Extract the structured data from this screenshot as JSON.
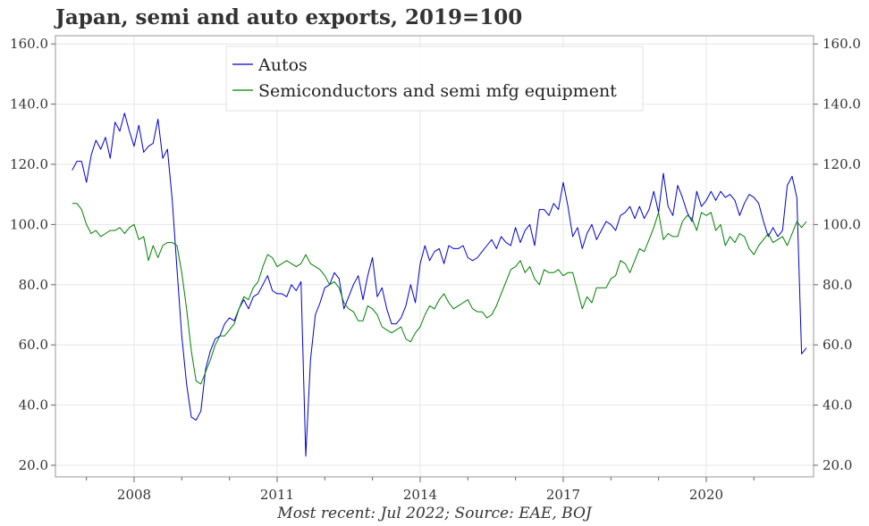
{
  "title": "Japan, semi and auto exports, 2019=100",
  "caption": "Most recent: Jul 2022; Source: EAE, BOJ",
  "chart_data": {
    "type": "line",
    "title": "Japan, semi and auto exports, 2019=100",
    "x_range": [
      2005.8,
      2022.0
    ],
    "ylim": [
      17.0,
      163.0
    ],
    "y_ticks": [
      20,
      40,
      60,
      80,
      100,
      120,
      140,
      160
    ],
    "y_tick_labels": [
      "20.0",
      "40.0",
      "60.0",
      "80.0",
      "100.0",
      "120.0",
      "140.0",
      "160.0"
    ],
    "x_ticks": [
      2008,
      2011,
      2014,
      2017,
      2020
    ],
    "x_tick_labels": [
      "2008",
      "2011",
      "2014",
      "2017",
      "2020"
    ],
    "grid": true,
    "legend_position": "top-center",
    "series": [
      {
        "name": "Autos",
        "color": "#0000cc",
        "points": [
          [
            2006.7,
            118
          ],
          [
            2006.8,
            121
          ],
          [
            2006.9,
            121
          ],
          [
            2007.0,
            114
          ],
          [
            2007.1,
            123
          ],
          [
            2007.2,
            128
          ],
          [
            2007.3,
            125
          ],
          [
            2007.4,
            129
          ],
          [
            2007.5,
            122
          ],
          [
            2007.6,
            134
          ],
          [
            2007.7,
            131
          ],
          [
            2007.8,
            137
          ],
          [
            2007.9,
            131
          ],
          [
            2008.0,
            126
          ],
          [
            2008.1,
            133
          ],
          [
            2008.2,
            124
          ],
          [
            2008.3,
            126
          ],
          [
            2008.4,
            127
          ],
          [
            2008.5,
            135
          ],
          [
            2008.6,
            122
          ],
          [
            2008.7,
            125
          ],
          [
            2008.8,
            108
          ],
          [
            2008.9,
            85
          ],
          [
            2009.0,
            63
          ],
          [
            2009.1,
            47
          ],
          [
            2009.2,
            36
          ],
          [
            2009.3,
            35
          ],
          [
            2009.4,
            38
          ],
          [
            2009.5,
            52
          ],
          [
            2009.6,
            58
          ],
          [
            2009.7,
            62
          ],
          [
            2009.8,
            63
          ],
          [
            2009.9,
            67
          ],
          [
            2010.0,
            69
          ],
          [
            2010.1,
            68
          ],
          [
            2010.2,
            72
          ],
          [
            2010.3,
            75
          ],
          [
            2010.4,
            72
          ],
          [
            2010.5,
            76
          ],
          [
            2010.6,
            77
          ],
          [
            2010.7,
            80
          ],
          [
            2010.8,
            83
          ],
          [
            2010.9,
            78
          ],
          [
            2011.0,
            77
          ],
          [
            2011.1,
            77
          ],
          [
            2011.2,
            76
          ],
          [
            2011.3,
            80
          ],
          [
            2011.4,
            78
          ],
          [
            2011.5,
            81
          ],
          [
            2011.6,
            23
          ],
          [
            2011.7,
            55
          ],
          [
            2011.8,
            70
          ],
          [
            2011.9,
            74
          ],
          [
            2012.0,
            79
          ],
          [
            2012.1,
            80
          ],
          [
            2012.2,
            84
          ],
          [
            2012.3,
            82
          ],
          [
            2012.4,
            72
          ],
          [
            2012.5,
            76
          ],
          [
            2012.6,
            80
          ],
          [
            2012.7,
            83
          ],
          [
            2012.8,
            75
          ],
          [
            2012.9,
            83
          ],
          [
            2013.0,
            89
          ],
          [
            2013.1,
            76
          ],
          [
            2013.2,
            79
          ],
          [
            2013.3,
            72
          ],
          [
            2013.4,
            67
          ],
          [
            2013.5,
            67
          ],
          [
            2013.6,
            69
          ],
          [
            2013.7,
            73
          ],
          [
            2013.8,
            80
          ],
          [
            2013.9,
            74
          ],
          [
            2014.0,
            87
          ],
          [
            2014.1,
            93
          ],
          [
            2014.2,
            88
          ],
          [
            2014.3,
            91
          ],
          [
            2014.4,
            92
          ],
          [
            2014.5,
            87
          ],
          [
            2014.6,
            93
          ],
          [
            2014.7,
            92
          ],
          [
            2014.8,
            92
          ],
          [
            2014.9,
            93
          ],
          [
            2015.0,
            89
          ],
          [
            2015.1,
            88
          ],
          [
            2015.2,
            89
          ],
          [
            2015.3,
            91
          ],
          [
            2015.4,
            93
          ],
          [
            2015.5,
            95
          ],
          [
            2015.6,
            92
          ],
          [
            2015.7,
            96
          ],
          [
            2015.8,
            94
          ],
          [
            2015.9,
            93
          ],
          [
            2016.0,
            99
          ],
          [
            2016.1,
            94
          ],
          [
            2016.2,
            98
          ],
          [
            2016.3,
            100
          ],
          [
            2016.4,
            93
          ],
          [
            2016.5,
            105
          ],
          [
            2016.6,
            105
          ],
          [
            2016.7,
            103
          ],
          [
            2016.8,
            107
          ],
          [
            2016.9,
            105
          ],
          [
            2017.0,
            114
          ],
          [
            2017.1,
            106
          ],
          [
            2017.2,
            96
          ],
          [
            2017.3,
            99
          ],
          [
            2017.4,
            92
          ],
          [
            2017.5,
            97
          ],
          [
            2017.6,
            100
          ],
          [
            2017.7,
            95
          ],
          [
            2017.8,
            98
          ],
          [
            2017.9,
            101
          ],
          [
            2018.0,
            100
          ],
          [
            2018.1,
            98
          ],
          [
            2018.2,
            103
          ],
          [
            2018.3,
            104
          ],
          [
            2018.4,
            106
          ],
          [
            2018.5,
            102
          ],
          [
            2018.6,
            106
          ],
          [
            2018.7,
            102
          ],
          [
            2018.8,
            105
          ],
          [
            2018.9,
            111
          ],
          [
            2019.0,
            104
          ],
          [
            2019.1,
            117
          ],
          [
            2019.2,
            106
          ],
          [
            2019.3,
            103
          ],
          [
            2019.4,
            113
          ],
          [
            2019.5,
            109
          ],
          [
            2019.6,
            104
          ],
          [
            2019.7,
            101
          ],
          [
            2019.8,
            111
          ],
          [
            2019.9,
            106
          ],
          [
            2020.0,
            108
          ],
          [
            2020.1,
            111
          ],
          [
            2020.2,
            108
          ],
          [
            2020.3,
            111
          ],
          [
            2020.4,
            109
          ],
          [
            2020.5,
            110
          ],
          [
            2020.6,
            108
          ],
          [
            2020.7,
            103
          ],
          [
            2020.8,
            107
          ],
          [
            2020.9,
            110
          ],
          [
            2021.0,
            109
          ],
          [
            2021.1,
            107
          ],
          [
            2021.2,
            101
          ],
          [
            2021.3,
            96
          ],
          [
            2021.4,
            99
          ],
          [
            2021.5,
            96
          ],
          [
            2021.6,
            98
          ],
          [
            2021.7,
            113
          ],
          [
            2021.8,
            116
          ],
          [
            2021.9,
            109
          ],
          [
            2022.0,
            57
          ],
          [
            2022.1,
            59
          ]
        ]
      },
      {
        "name": "Semiconductors and semi mfg equipment",
        "color": "#008000",
        "points": [
          [
            2006.7,
            107
          ],
          [
            2006.8,
            107
          ],
          [
            2006.9,
            105
          ],
          [
            2007.0,
            100
          ],
          [
            2007.1,
            97
          ],
          [
            2007.2,
            98
          ],
          [
            2007.3,
            96
          ],
          [
            2007.4,
            97
          ],
          [
            2007.5,
            98
          ],
          [
            2007.6,
            98
          ],
          [
            2007.7,
            99
          ],
          [
            2007.8,
            97
          ],
          [
            2007.9,
            99
          ],
          [
            2008.0,
            100
          ],
          [
            2008.1,
            95
          ],
          [
            2008.2,
            96
          ],
          [
            2008.3,
            88
          ],
          [
            2008.4,
            93
          ],
          [
            2008.5,
            89
          ],
          [
            2008.6,
            93
          ],
          [
            2008.7,
            94
          ],
          [
            2008.8,
            94
          ],
          [
            2008.9,
            93
          ],
          [
            2009.0,
            84
          ],
          [
            2009.1,
            72
          ],
          [
            2009.2,
            58
          ],
          [
            2009.3,
            48
          ],
          [
            2009.4,
            47
          ],
          [
            2009.5,
            51
          ],
          [
            2009.6,
            55
          ],
          [
            2009.7,
            60
          ],
          [
            2009.8,
            63
          ],
          [
            2009.9,
            63
          ],
          [
            2010.0,
            65
          ],
          [
            2010.1,
            67
          ],
          [
            2010.2,
            72
          ],
          [
            2010.3,
            76
          ],
          [
            2010.4,
            75
          ],
          [
            2010.5,
            79
          ],
          [
            2010.6,
            81
          ],
          [
            2010.7,
            86
          ],
          [
            2010.8,
            90
          ],
          [
            2010.9,
            89
          ],
          [
            2011.0,
            86
          ],
          [
            2011.1,
            87
          ],
          [
            2011.2,
            88
          ],
          [
            2011.3,
            87
          ],
          [
            2011.4,
            86
          ],
          [
            2011.5,
            87
          ],
          [
            2011.6,
            90
          ],
          [
            2011.7,
            87
          ],
          [
            2011.8,
            86
          ],
          [
            2011.9,
            85
          ],
          [
            2012.0,
            83
          ],
          [
            2012.1,
            80
          ],
          [
            2012.2,
            81
          ],
          [
            2012.3,
            79
          ],
          [
            2012.4,
            74
          ],
          [
            2012.5,
            72
          ],
          [
            2012.6,
            71
          ],
          [
            2012.7,
            68
          ],
          [
            2012.8,
            68
          ],
          [
            2012.9,
            73
          ],
          [
            2013.0,
            72
          ],
          [
            2013.1,
            70
          ],
          [
            2013.2,
            66
          ],
          [
            2013.3,
            65
          ],
          [
            2013.4,
            64
          ],
          [
            2013.5,
            65
          ],
          [
            2013.6,
            66
          ],
          [
            2013.7,
            62
          ],
          [
            2013.8,
            61
          ],
          [
            2013.9,
            64
          ],
          [
            2014.0,
            66
          ],
          [
            2014.1,
            70
          ],
          [
            2014.2,
            73
          ],
          [
            2014.3,
            72
          ],
          [
            2014.4,
            75
          ],
          [
            2014.5,
            77
          ],
          [
            2014.6,
            74
          ],
          [
            2014.7,
            72
          ],
          [
            2014.8,
            73
          ],
          [
            2014.9,
            74
          ],
          [
            2015.0,
            75
          ],
          [
            2015.1,
            72
          ],
          [
            2015.2,
            71
          ],
          [
            2015.3,
            71
          ],
          [
            2015.4,
            69
          ],
          [
            2015.5,
            70
          ],
          [
            2015.6,
            73
          ],
          [
            2015.7,
            77
          ],
          [
            2015.8,
            81
          ],
          [
            2015.9,
            85
          ],
          [
            2016.0,
            86
          ],
          [
            2016.1,
            88
          ],
          [
            2016.2,
            84
          ],
          [
            2016.3,
            86
          ],
          [
            2016.4,
            82
          ],
          [
            2016.5,
            80
          ],
          [
            2016.6,
            85
          ],
          [
            2016.7,
            84
          ],
          [
            2016.8,
            84
          ],
          [
            2016.9,
            85
          ],
          [
            2017.0,
            83
          ],
          [
            2017.1,
            84
          ],
          [
            2017.2,
            84
          ],
          [
            2017.3,
            78
          ],
          [
            2017.4,
            72
          ],
          [
            2017.5,
            76
          ],
          [
            2017.6,
            74
          ],
          [
            2017.7,
            79
          ],
          [
            2017.8,
            79
          ],
          [
            2017.9,
            79
          ],
          [
            2018.0,
            82
          ],
          [
            2018.1,
            83
          ],
          [
            2018.2,
            88
          ],
          [
            2018.3,
            87
          ],
          [
            2018.4,
            84
          ],
          [
            2018.5,
            88
          ],
          [
            2018.6,
            92
          ],
          [
            2018.7,
            91
          ],
          [
            2018.8,
            95
          ],
          [
            2018.9,
            99
          ],
          [
            2019.0,
            104
          ],
          [
            2019.1,
            95
          ],
          [
            2019.2,
            97
          ],
          [
            2019.3,
            96
          ],
          [
            2019.4,
            96
          ],
          [
            2019.5,
            101
          ],
          [
            2019.6,
            103
          ],
          [
            2019.7,
            102
          ],
          [
            2019.8,
            98
          ],
          [
            2019.9,
            104
          ],
          [
            2020.0,
            103
          ],
          [
            2020.1,
            104
          ],
          [
            2020.2,
            98
          ],
          [
            2020.3,
            100
          ],
          [
            2020.4,
            93
          ],
          [
            2020.5,
            96
          ],
          [
            2020.6,
            94
          ],
          [
            2020.7,
            97
          ],
          [
            2020.8,
            96
          ],
          [
            2020.9,
            92
          ],
          [
            2021.0,
            90
          ],
          [
            2021.1,
            93
          ],
          [
            2021.2,
            95
          ],
          [
            2021.3,
            97
          ],
          [
            2021.4,
            94
          ],
          [
            2021.5,
            95
          ],
          [
            2021.6,
            96
          ],
          [
            2021.7,
            93
          ],
          [
            2021.8,
            97
          ],
          [
            2021.9,
            101
          ],
          [
            2022.0,
            99
          ],
          [
            2022.1,
            101
          ]
        ]
      }
    ]
  }
}
